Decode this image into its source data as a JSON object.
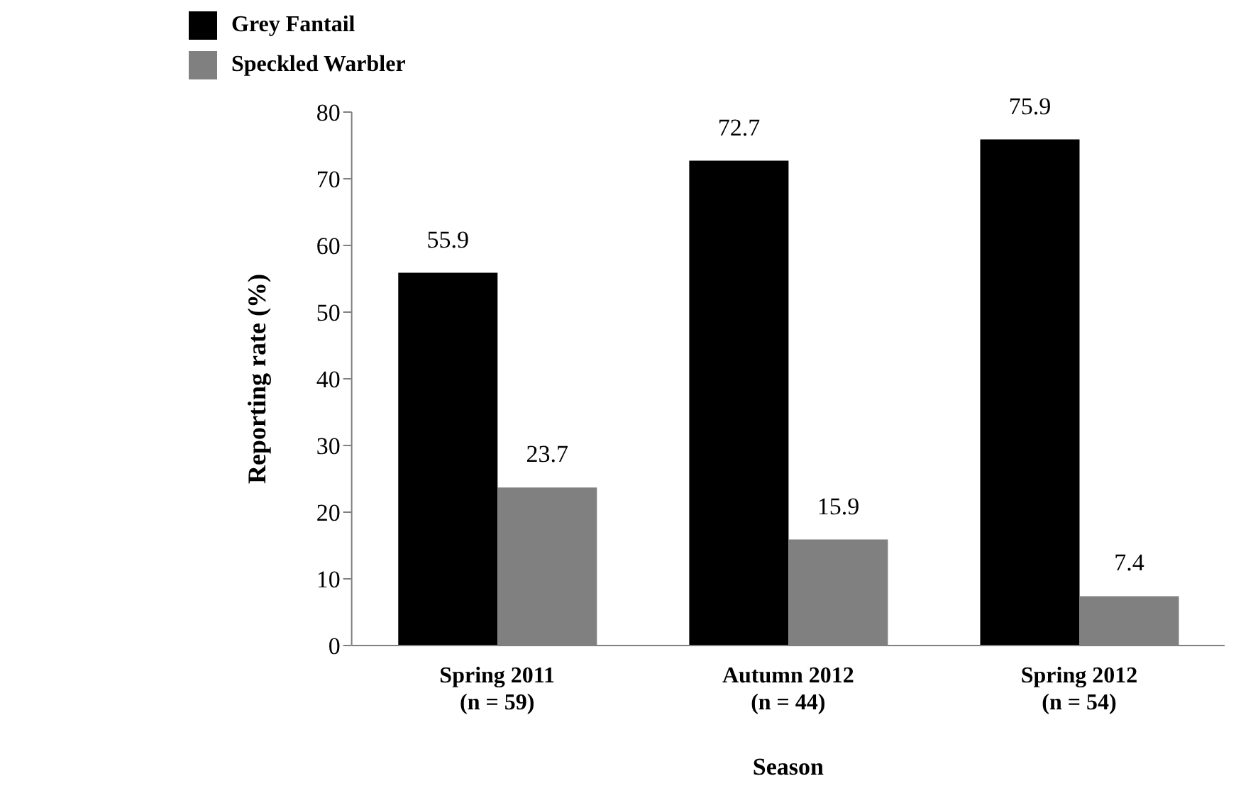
{
  "chart_data": {
    "type": "bar",
    "xlabel": "Season",
    "ylabel": "Reporting rate (%)",
    "categories": [
      "Spring 2011\n(n = 59)",
      "Autumn 2012\n(n = 44)",
      "Spring 2012\n(n = 54)"
    ],
    "series": [
      {
        "name": "Grey Fantail",
        "color": "#000000",
        "values": [
          55.9,
          72.7,
          75.9
        ]
      },
      {
        "name": "Speckled Warbler",
        "color": "#808080",
        "values": [
          23.7,
          15.9,
          7.4
        ]
      }
    ],
    "ylim": [
      0,
      80
    ],
    "yticks": [
      0,
      10,
      20,
      30,
      40,
      50,
      60,
      70,
      80
    ],
    "grid": false,
    "legend": "top left",
    "data_labels": true
  }
}
